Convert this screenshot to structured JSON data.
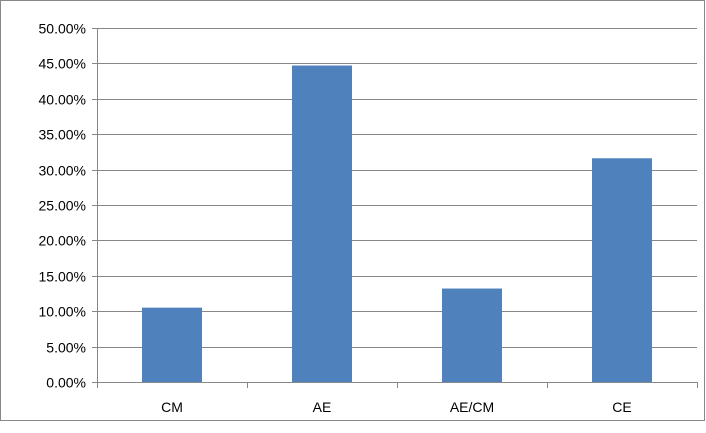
{
  "chart_data": {
    "type": "bar",
    "categories": [
      "CM",
      "AE",
      "AE/CM",
      "CE"
    ],
    "values": [
      10.5,
      44.7,
      13.2,
      31.6
    ],
    "value_format": "percent-2dp",
    "ylim": [
      0,
      50
    ],
    "ytick_step": 5,
    "yticks": [
      "0.00%",
      "5.00%",
      "10.00%",
      "15.00%",
      "20.00%",
      "25.00%",
      "30.00%",
      "35.00%",
      "40.00%",
      "45.00%",
      "50.00%"
    ],
    "title": "",
    "xlabel": "",
    "ylabel": "",
    "grid": true,
    "legend": "none",
    "bar_color": "#4F81BD",
    "gridline_color": "#878787"
  }
}
